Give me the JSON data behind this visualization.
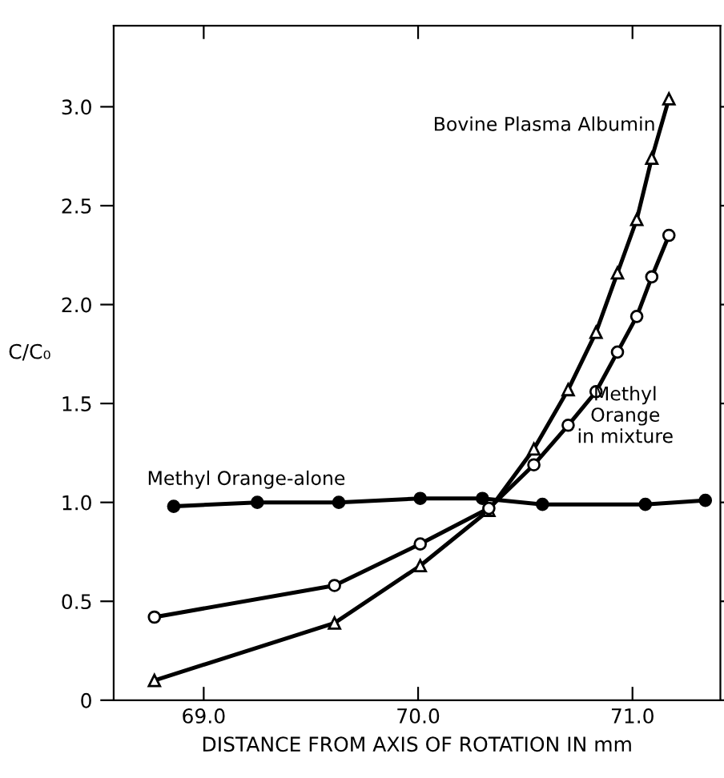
{
  "chart_data": {
    "type": "line",
    "xlabel": "DISTANCE FROM AXIS OF ROTATION IN mm",
    "ylabel": "C/C₀",
    "xlim": [
      68.58,
      71.41
    ],
    "ylim": [
      0,
      3.41
    ],
    "xticks": [
      {
        "value": 69,
        "label": "69.0"
      },
      {
        "value": 70,
        "label": "70.0"
      },
      {
        "value": 71,
        "label": "71.0"
      }
    ],
    "yticks": [
      0,
      0.5,
      {
        "value": 1,
        "label": "1.0"
      },
      1.5,
      {
        "value": 2,
        "label": "2.0"
      },
      2.5,
      {
        "value": 3,
        "label": "3.0"
      }
    ],
    "grid": false,
    "legend": false,
    "series": [
      {
        "name": "Bovine Plasma Albumin",
        "color": "#000000",
        "marker": "triangle",
        "x": [
          68.77,
          69.61,
          70.01,
          70.33,
          70.54,
          70.7,
          70.83,
          70.93,
          71.02,
          71.09,
          71.17
        ],
        "values": [
          0.1,
          0.39,
          0.68,
          0.96,
          1.27,
          1.57,
          1.86,
          2.16,
          2.43,
          2.74,
          3.04
        ]
      },
      {
        "name": "Methyl\nOrange\nin mixture",
        "color": "#000000",
        "marker": "circle",
        "x": [
          68.77,
          69.61,
          70.01,
          70.33,
          70.54,
          70.7,
          70.83,
          70.93,
          71.02,
          71.09,
          71.17
        ],
        "values": [
          0.42,
          0.58,
          0.79,
          0.97,
          1.19,
          1.39,
          1.56,
          1.76,
          1.94,
          2.14,
          2.35
        ]
      },
      {
        "name": "Methyl Orange-alone",
        "color": "#000000",
        "marker": "circle",
        "x": [
          68.86,
          69.25,
          69.63,
          70.01,
          70.3,
          70.58,
          71.06,
          71.34
        ],
        "values": [
          0.98,
          1.0,
          1.0,
          1.02,
          1.02,
          0.99,
          0.99,
          1.01
        ]
      }
    ]
  }
}
